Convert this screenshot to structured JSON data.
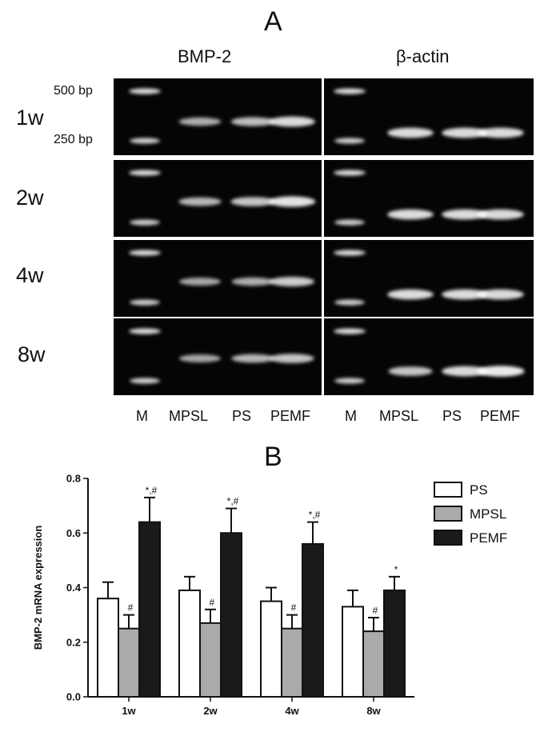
{
  "panel_a": {
    "letter": "A",
    "gels": [
      {
        "title": "BMP-2",
        "lanes": [
          "M",
          "MPSL",
          "PS",
          "PEMF"
        ]
      },
      {
        "title": "β-actin",
        "lanes": [
          "M",
          "MPSL",
          "PS",
          "PEMF"
        ]
      }
    ],
    "weeks": [
      "1w",
      "2w",
      "4w",
      "8w"
    ],
    "size_markers": [
      "500 bp",
      "250 bp"
    ],
    "band_intensity": {
      "bmp2": [
        [
          0.55,
          0.65,
          0.85
        ],
        [
          0.6,
          0.7,
          0.9
        ],
        [
          0.5,
          0.55,
          0.75
        ],
        [
          0.5,
          0.6,
          0.7
        ]
      ],
      "actin": [
        [
          0.85,
          0.85,
          0.85
        ],
        [
          0.85,
          0.85,
          0.85
        ],
        [
          0.85,
          0.85,
          0.85
        ],
        [
          0.7,
          0.85,
          0.95
        ]
      ]
    },
    "colors": {
      "gel_bg": "#050505",
      "band": "#ffffff"
    }
  },
  "panel_b": {
    "letter": "B"
  },
  "chart_data": {
    "type": "bar",
    "ylabel": "BMP-2 mRNA expression",
    "xlabel": "",
    "ylim": [
      0,
      0.8
    ],
    "yticks": [
      "0.0",
      "0.2",
      "0.4",
      "0.6",
      "0.8"
    ],
    "categories": [
      "1w",
      "2w",
      "4w",
      "8w"
    ],
    "series": [
      {
        "name": "PS",
        "color": "#ffffff",
        "values": [
          0.36,
          0.39,
          0.35,
          0.33
        ],
        "errors": [
          0.06,
          0.05,
          0.05,
          0.06
        ],
        "marks": [
          "",
          "",
          "",
          ""
        ]
      },
      {
        "name": "MPSL",
        "color": "#aaaaaa",
        "values": [
          0.25,
          0.27,
          0.25,
          0.24
        ],
        "errors": [
          0.05,
          0.05,
          0.05,
          0.05
        ],
        "marks": [
          "#",
          "#",
          "#",
          "#"
        ]
      },
      {
        "name": "PEMF",
        "color": "#1a1a1a",
        "values": [
          0.64,
          0.6,
          0.56,
          0.39
        ],
        "errors": [
          0.09,
          0.09,
          0.08,
          0.05
        ],
        "marks": [
          "*,#",
          "*,#",
          "*,#",
          "*"
        ]
      }
    ],
    "legend_position": "top-right",
    "grid": false
  }
}
